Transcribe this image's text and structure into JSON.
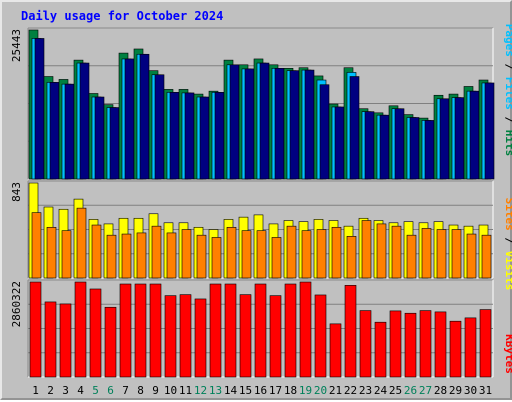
{
  "chart_data": {
    "type": "bar",
    "title": "Daily usage for October 2024",
    "x": [
      "1",
      "2",
      "3",
      "4",
      "5",
      "6",
      "7",
      "8",
      "9",
      "10",
      "11",
      "12",
      "13",
      "14",
      "15",
      "16",
      "17",
      "18",
      "19",
      "20",
      "21",
      "22",
      "23",
      "24",
      "25",
      "26",
      "27",
      "28",
      "29",
      "30",
      "31"
    ],
    "weekend_days": [
      "5",
      "6",
      "12",
      "13",
      "19",
      "20",
      "26",
      "27"
    ],
    "panels": [
      {
        "axis_max_label": "25443",
        "ymax": 25443,
        "legend": [
          "Pages",
          "/",
          "Files",
          "/",
          "Hits"
        ],
        "series": [
          {
            "name": "Hits",
            "color": "#008040",
            "values": [
              25443,
              17500,
              17000,
              20300,
              14600,
              12700,
              21500,
              22200,
              18500,
              15300,
              15300,
              14500,
              15000,
              20300,
              19500,
              20500,
              19500,
              18900,
              19000,
              17600,
              12800,
              19000,
              12000,
              11300,
              12500,
              11000,
              10400,
              14300,
              14500,
              15800,
              16900
            ]
          },
          {
            "name": "Files",
            "color": "#00c0ff",
            "values": [
              24000,
              16500,
              16200,
              19800,
              14000,
              12200,
              20500,
              21300,
              17800,
              14800,
              14700,
              14000,
              14800,
              19500,
              18800,
              19800,
              18900,
              18500,
              18600,
              16900,
              12300,
              18200,
              11500,
              10900,
              12000,
              10500,
              10000,
              13700,
              13900,
              15000,
              16400
            ]
          },
          {
            "name": "Pages",
            "color": "#000080",
            "values": [
              24000,
              16500,
              16200,
              19800,
              14000,
              12200,
              20500,
              21300,
              17800,
              14800,
              14700,
              14000,
              14800,
              19500,
              18800,
              19800,
              18900,
              18500,
              18600,
              16100,
              12300,
              17500,
              11500,
              10900,
              12000,
              10500,
              10000,
              13700,
              13900,
              15000,
              16400
            ]
          }
        ]
      },
      {
        "axis_max_label": "843",
        "ymax": 843,
        "legend": [
          "Sites",
          "/",
          "Visits"
        ],
        "series": [
          {
            "name": "Visits",
            "color": "#ffff00",
            "values": [
              843,
              630,
              610,
              700,
              520,
              480,
              530,
              530,
              570,
              490,
              490,
              450,
              430,
              520,
              540,
              560,
              480,
              510,
              500,
              520,
              510,
              460,
              530,
              510,
              490,
              500,
              490,
              500,
              470,
              460,
              470
            ]
          },
          {
            "name": "Sites",
            "color": "#ff8000",
            "values": [
              580,
              450,
              420,
              620,
              470,
              380,
              390,
              400,
              460,
              400,
              430,
              380,
              360,
              450,
              420,
              420,
              360,
              460,
              420,
              430,
              450,
              370,
              510,
              480,
              460,
              380,
              440,
              430,
              430,
              390,
              380
            ]
          }
        ]
      },
      {
        "axis_max_label": "2860322",
        "ymax": 2860322,
        "legend": [
          "KBytes"
        ],
        "series": [
          {
            "name": "KBytes",
            "color": "#ff0000",
            "values": [
              2860322,
              2260000,
              2200000,
              2860000,
              2650000,
              2100000,
              2800000,
              2800000,
              2800000,
              2450000,
              2480000,
              2350000,
              2800000,
              2800000,
              2480000,
              2800000,
              2450000,
              2800000,
              2860000,
              2470000,
              1600000,
              2760000,
              2000000,
              1650000,
              1990000,
              1920000,
              2000000,
              1960000,
              1680000,
              1780000,
              2030000
            ]
          }
        ]
      }
    ],
    "legend_colors": {
      "slash": "#000000"
    }
  }
}
